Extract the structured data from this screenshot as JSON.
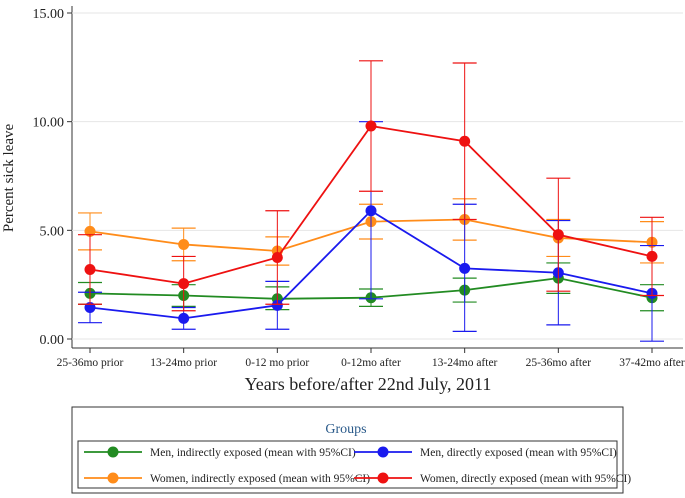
{
  "chart_data": {
    "type": "line",
    "title": "",
    "xlabel": "Years before/after 22nd July, 2011",
    "ylabel": "Percent sick leave",
    "ylim": [
      0,
      15
    ],
    "yticks": [
      "0.00",
      "5.00",
      "10.00",
      "15.00"
    ],
    "ytick_values": [
      0,
      5,
      10,
      15
    ],
    "grid": "horizontal",
    "categories": [
      "25-36mo prior",
      "13-24mo prior",
      "0-12 mo prior",
      "0-12mo after",
      "13-24mo after",
      "25-36mo after",
      "37-42mo after"
    ],
    "legend": {
      "title": "Groups",
      "placement": "bottom"
    },
    "series": [
      {
        "name": "Men, indirectly exposed (mean with 95%CI)",
        "color": "#228b22",
        "values": [
          2.1,
          2.0,
          1.85,
          1.9,
          2.25,
          2.8,
          1.9
        ],
        "ci_low": [
          1.6,
          1.5,
          1.35,
          1.5,
          1.7,
          2.1,
          1.3
        ],
        "ci_high": [
          2.6,
          2.5,
          2.4,
          2.3,
          2.8,
          3.5,
          2.5
        ]
      },
      {
        "name": "Men, directly exposed (mean with 95%CI)",
        "color": "#1a1aee",
        "values": [
          1.45,
          0.95,
          1.55,
          5.9,
          3.25,
          3.05,
          2.1
        ],
        "ci_low": [
          0.75,
          0.45,
          0.45,
          1.85,
          0.35,
          0.65,
          -0.1
        ],
        "ci_high": [
          2.15,
          1.45,
          2.65,
          10.0,
          6.2,
          5.45,
          4.3
        ]
      },
      {
        "name": "Women, indirectly exposed (mean with 95%CI)",
        "color": "#ff8c1a",
        "values": [
          4.95,
          4.35,
          4.05,
          5.4,
          5.5,
          4.65,
          4.45
        ],
        "ci_low": [
          4.1,
          3.6,
          3.4,
          4.6,
          4.55,
          3.8,
          3.5
        ],
        "ci_high": [
          5.8,
          5.1,
          4.7,
          6.2,
          6.45,
          5.5,
          5.4
        ]
      },
      {
        "name": "Women, directly exposed (mean with 95%CI)",
        "color": "#ee1111",
        "values": [
          3.2,
          2.55,
          3.75,
          9.8,
          9.1,
          4.8,
          3.8
        ],
        "ci_low": [
          1.6,
          1.3,
          1.6,
          6.8,
          5.5,
          2.2,
          2.0
        ],
        "ci_high": [
          4.8,
          3.8,
          5.9,
          12.8,
          12.7,
          7.4,
          5.6
        ]
      }
    ]
  }
}
